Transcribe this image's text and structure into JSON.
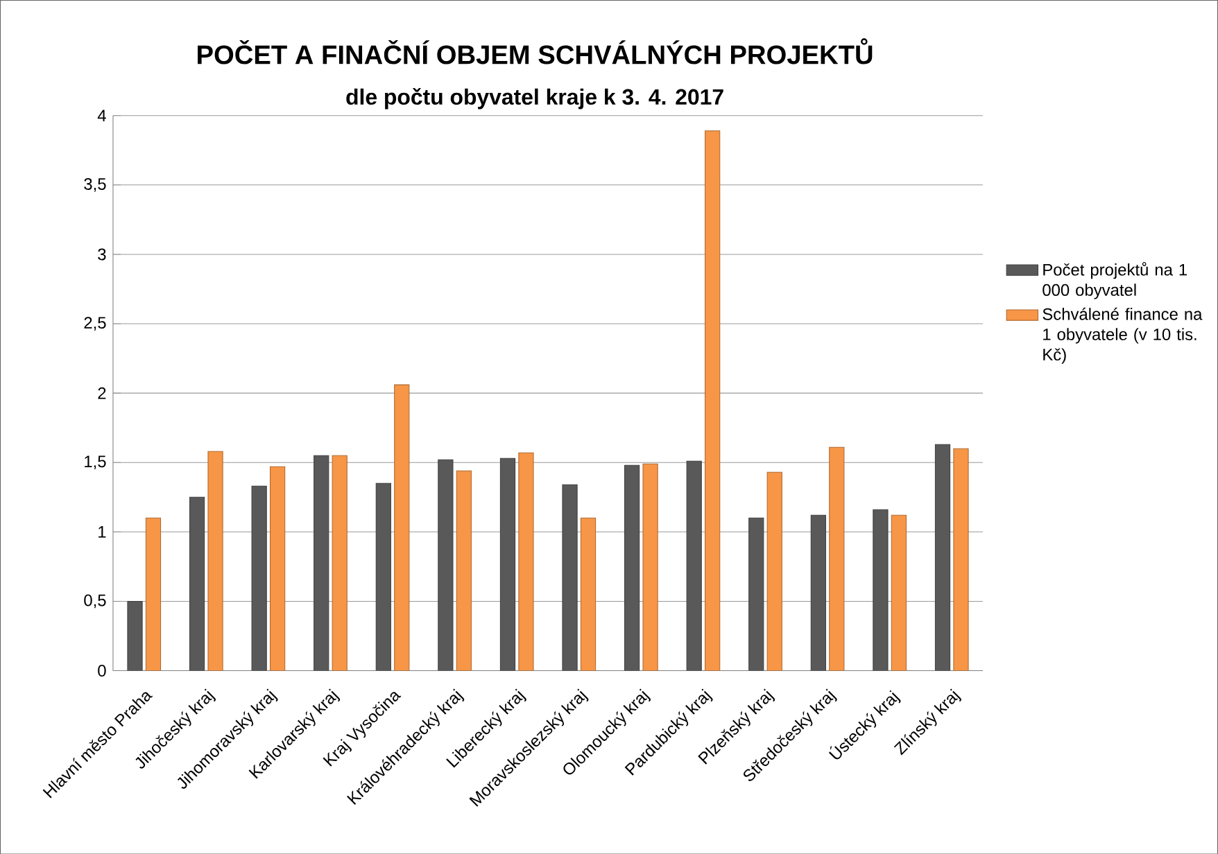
{
  "chart_data": {
    "type": "bar",
    "title": "POČET A FINAČNÍ OBJEM SCHVÁLNÝCH PROJEKTŮ",
    "subtitle": "dle počtu obyvatel kraje k 3. 4. 2017",
    "categories": [
      "Hlavní město Praha",
      "Jihočeský kraj",
      "Jihomoravský kraj",
      "Karlovarský kraj",
      "Kraj Vysočina",
      "Královéhradecký kraj",
      "Liberecký kraj",
      "Moravskoslezský kraj",
      "Olomoucký kraj",
      "Pardubický kraj",
      "Plzeňský kraj",
      "Středočeský kraj",
      "Ústecký kraj",
      "Zlínský kraj"
    ],
    "series": [
      {
        "name": "Počet projektů na 1 000 obyvatel",
        "color": "#595959",
        "values": [
          0.5,
          1.25,
          1.33,
          1.55,
          1.35,
          1.52,
          1.53,
          1.34,
          1.48,
          1.51,
          1.1,
          1.12,
          1.16,
          1.63
        ]
      },
      {
        "name": "Schválené finance na 1 obyvatele (v 10 tis. Kč)",
        "color": "#f79646",
        "values": [
          1.1,
          1.58,
          1.47,
          1.55,
          2.06,
          1.44,
          1.57,
          1.1,
          1.49,
          3.89,
          1.43,
          1.61,
          1.12,
          1.6
        ]
      }
    ],
    "ylim": [
      0,
      4
    ],
    "yticks": [
      {
        "value": 0,
        "label": "0"
      },
      {
        "value": 0.5,
        "label": "0,5"
      },
      {
        "value": 1,
        "label": "1"
      },
      {
        "value": 1.5,
        "label": "1,5"
      },
      {
        "value": 2,
        "label": "2"
      },
      {
        "value": 2.5,
        "label": "2,5"
      },
      {
        "value": 3,
        "label": "3"
      },
      {
        "value": 3.5,
        "label": "3,5"
      },
      {
        "value": 4,
        "label": "4"
      }
    ],
    "grid": "y",
    "legend": "right"
  }
}
